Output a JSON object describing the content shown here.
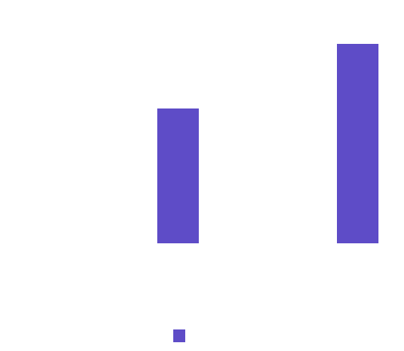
{
  "chart_data": {
    "type": "bar",
    "categories": [
      null,
      null
    ],
    "values": [
      169,
      250
    ],
    "color": "#5e4cc7",
    "ylim": [
      0,
      250
    ],
    "legend": "bottom"
  }
}
